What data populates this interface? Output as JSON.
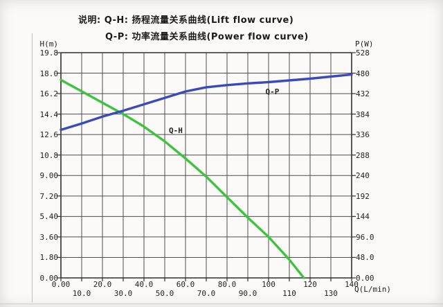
{
  "legend": {
    "line1": "说明: Q-H: 扬程流量关系曲线(Lift flow curve)",
    "line2": "Q-P: 功率流量关系曲线(Power flow curve)"
  },
  "chart_data": {
    "type": "line",
    "grid": true,
    "x_axis": {
      "label": "Q(L/min)",
      "lim": [
        0,
        140
      ],
      "tick_values": [
        0,
        10,
        20,
        30,
        40,
        50,
        60,
        70,
        80,
        90,
        100,
        110,
        120,
        130,
        140
      ],
      "tick_labels": [
        "0.00",
        "10.0",
        "20.0",
        "30.0",
        "40.0",
        "50.0",
        "60.0",
        "70.0",
        "80.0",
        "90.0",
        "100",
        "110",
        "120",
        "130",
        "140"
      ]
    },
    "left_axis": {
      "label": "H(m)",
      "lim": [
        0,
        19.8
      ],
      "tick_labels_top_to_bottom": [
        "19.8",
        "18.0",
        "16.2",
        "14.4",
        "12.6",
        "10.8",
        "9.00",
        "7.20",
        "5.40",
        "3.60",
        "1.80",
        "0.00"
      ]
    },
    "right_axis": {
      "label": "P(W)",
      "lim": [
        0,
        528
      ],
      "tick_labels_top_to_bottom": [
        "528",
        "480",
        "432",
        "384",
        "336",
        "288",
        "240",
        "192",
        "144",
        "96.0",
        "48.0",
        "0.00"
      ]
    },
    "series": [
      {
        "name": "Q-H",
        "axis": "left",
        "color": "#3cc43c",
        "label": "Q-H",
        "label_anchor": {
          "q": 52,
          "v": 13.35
        },
        "points": [
          [
            0,
            17.4
          ],
          [
            10,
            16.4
          ],
          [
            20,
            15.4
          ],
          [
            30,
            14.4
          ],
          [
            40,
            13.3
          ],
          [
            50,
            12.0
          ],
          [
            60,
            10.5
          ],
          [
            70,
            8.9
          ],
          [
            80,
            7.1
          ],
          [
            90,
            5.3
          ],
          [
            100,
            3.6
          ],
          [
            110,
            1.6
          ],
          [
            117,
            0.0
          ]
        ]
      },
      {
        "name": "Q-P",
        "axis": "right",
        "color": "#3a4abe",
        "label": "Q-P",
        "label_anchor": {
          "q": 98.5,
          "v": 446
        },
        "points": [
          [
            0,
            347
          ],
          [
            10,
            362
          ],
          [
            20,
            378
          ],
          [
            30,
            392
          ],
          [
            40,
            407
          ],
          [
            50,
            422
          ],
          [
            60,
            437
          ],
          [
            70,
            447
          ],
          [
            80,
            452
          ],
          [
            90,
            456
          ],
          [
            100,
            459
          ],
          [
            110,
            463
          ],
          [
            120,
            467
          ],
          [
            130,
            472
          ],
          [
            140,
            477
          ]
        ]
      }
    ],
    "colors": {
      "grid": "#4d4d4d",
      "border": "#2e2e2e",
      "text": "#1b1b1b"
    }
  }
}
